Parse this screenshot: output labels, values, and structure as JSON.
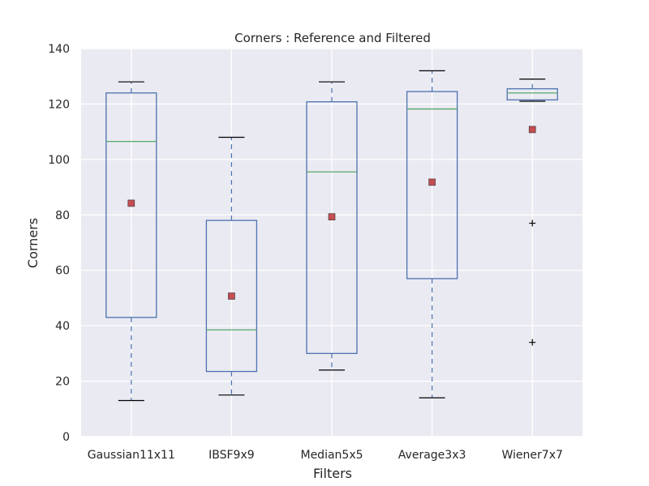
{
  "chart_data": {
    "type": "box",
    "title": "Corners :  Reference and Filtered",
    "xlabel": "Filters",
    "ylabel": "Corners",
    "ylim": [
      0,
      140
    ],
    "yticks": [
      0,
      20,
      40,
      60,
      80,
      100,
      120,
      140
    ],
    "grid": true,
    "background": "#eaeaf2",
    "colors": {
      "box": "#4c72b0",
      "median": "#55a868",
      "mean": "#c44e52",
      "cap": "#000000",
      "flier": "#000000"
    },
    "categories": [
      "Gaussian11x11",
      "IBSF9x9",
      "Median5x5",
      "Average3x3",
      "Wiener7x7"
    ],
    "boxes": [
      {
        "name": "Gaussian11x11",
        "whisker_low": 13,
        "q1": 43,
        "median": 106.5,
        "q3": 124,
        "whisker_high": 128,
        "mean": 84.2,
        "fliers": []
      },
      {
        "name": "IBSF9x9",
        "whisker_low": 15,
        "q1": 23.5,
        "median": 38.5,
        "q3": 78,
        "whisker_high": 108,
        "mean": 50.7,
        "fliers": []
      },
      {
        "name": "Median5x5",
        "whisker_low": 24,
        "q1": 30,
        "median": 95.5,
        "q3": 120.8,
        "whisker_high": 128,
        "mean": 79.3,
        "fliers": []
      },
      {
        "name": "Average3x3",
        "whisker_low": 14,
        "q1": 57,
        "median": 118.2,
        "q3": 124.5,
        "whisker_high": 132,
        "mean": 91.8,
        "fliers": []
      },
      {
        "name": "Wiener7x7",
        "whisker_low": 121,
        "q1": 121.5,
        "median": 124,
        "q3": 125.5,
        "whisker_high": 129,
        "mean": 110.8,
        "fliers": [
          77,
          34
        ]
      }
    ]
  }
}
